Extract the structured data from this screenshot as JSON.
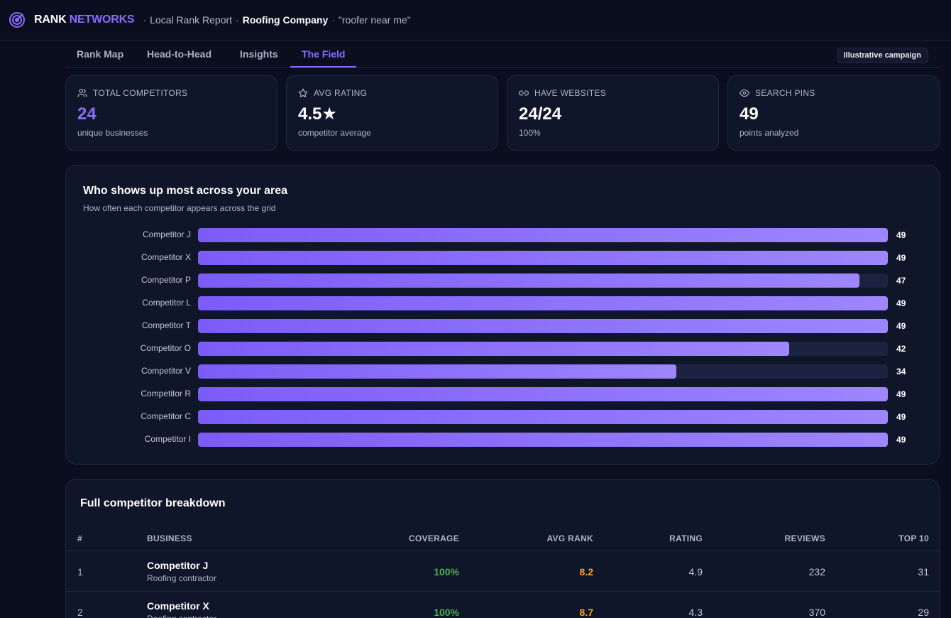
{
  "header": {
    "brand_primary": "RANK",
    "brand_accent": "NETWORKS",
    "report_label": "Local Rank Report",
    "business": "Roofing Company",
    "keyword": "\"roofer near me\"",
    "separator": "·"
  },
  "tabs": [
    {
      "label": "Rank Map",
      "active": false
    },
    {
      "label": "Head-to-Head",
      "active": false
    },
    {
      "label": "Insights",
      "active": false
    },
    {
      "label": "The Field",
      "active": true
    }
  ],
  "campaign_badge": "Illustrative campaign",
  "stats": [
    {
      "icon": "users-icon",
      "label": "TOTAL COMPETITORS",
      "value": "24",
      "sub": "unique businesses"
    },
    {
      "icon": "star-icon",
      "label": "AVG RATING",
      "value": "4.5★",
      "sub": "competitor average"
    },
    {
      "icon": "link-icon",
      "label": "HAVE WEBSITES",
      "value": "24/24",
      "sub": "100%"
    },
    {
      "icon": "eye-icon",
      "label": "SEARCH PINS",
      "value": "49",
      "sub": "points analyzed"
    }
  ],
  "chart_data": {
    "type": "bar",
    "orientation": "horizontal",
    "title": "Who shows up most across your area",
    "subtitle": "How often each competitor appears across the grid",
    "categories": [
      "Competitor J",
      "Competitor X",
      "Competitor P",
      "Competitor L",
      "Competitor T",
      "Competitor O",
      "Competitor V",
      "Competitor R",
      "Competitor C",
      "Competitor I"
    ],
    "values": [
      49,
      49,
      47,
      49,
      49,
      42,
      34,
      49,
      49,
      49
    ],
    "xlim": [
      0,
      49
    ],
    "bar_color_start": "#7c5cf8",
    "bar_color_end": "#9d86ff"
  },
  "table": {
    "title": "Full competitor breakdown",
    "columns": [
      "#",
      "BUSINESS",
      "COVERAGE",
      "AVG RANK",
      "RATING",
      "REVIEWS",
      "TOP 10"
    ],
    "rows": [
      {
        "num": "1",
        "name": "Competitor J",
        "type": "Roofing contractor",
        "coverage": "100%",
        "avg_rank": "8.2",
        "rating": "4.9",
        "reviews": "232",
        "top10": "31"
      },
      {
        "num": "2",
        "name": "Competitor X",
        "type": "Roofing contractor",
        "coverage": "100%",
        "avg_rank": "8.7",
        "rating": "4.3",
        "reviews": "370",
        "top10": "29"
      }
    ]
  },
  "colors": {
    "accent": "#8b6cff",
    "coverage_good": "#4caf50",
    "rank_warning": "#f5a623",
    "background": "#0a0e1f",
    "card": "#101629"
  }
}
